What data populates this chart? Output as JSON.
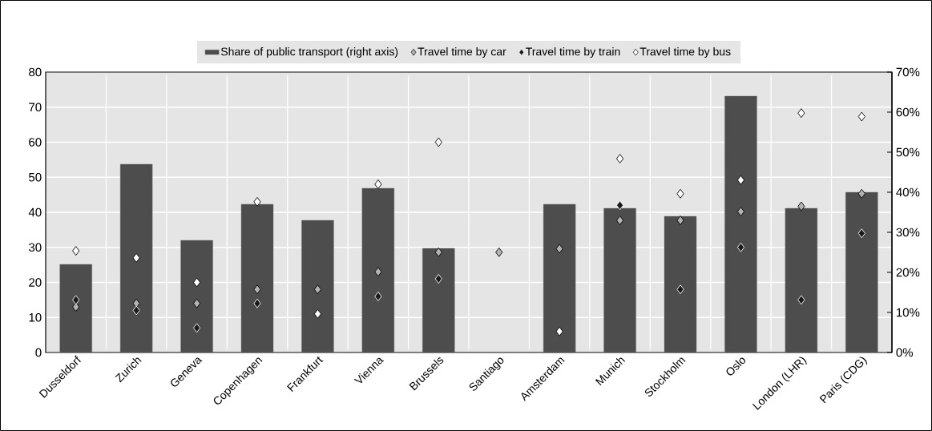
{
  "chart_data": {
    "type": "scatter",
    "categories": [
      "Dusseldorf",
      "Zurich",
      "Geneva",
      "Copenhagen",
      "Frankfurt",
      "Vienna",
      "Brussels",
      "Santiago",
      "Amsterdam",
      "Munich",
      "Stockholm",
      "Oslo",
      "London (LHR)",
      "Paris (CDG)"
    ],
    "series": [
      {
        "name": "Share of public transport (right axis)",
        "type": "bar",
        "axis": "y2",
        "color": "#4d4d4d",
        "values": [
          22,
          47,
          28,
          37,
          33,
          41,
          26,
          null,
          37,
          36,
          34,
          64,
          36,
          40
        ]
      },
      {
        "name": "Travel time by car",
        "color": "#b3b3b3",
        "values": [
          13,
          14,
          14,
          18,
          18,
          23,
          28.6,
          28.6,
          29.6,
          37.7,
          37.7,
          40.2,
          41.7,
          45.3
        ]
      },
      {
        "name": "Travel time by train",
        "color": "#1a1a1a",
        "values": [
          15,
          12,
          7,
          14,
          null,
          16,
          21,
          null,
          null,
          42,
          18,
          30,
          15,
          34
        ]
      },
      {
        "name": "Travel time by bus",
        "color": "#ffffff",
        "values": [
          29,
          27,
          20,
          43,
          11,
          48,
          60,
          null,
          6,
          55.3,
          45.3,
          49.2,
          68.3,
          67.3
        ]
      }
    ],
    "ylim": [
      0,
      80
    ],
    "yticks": [
      0,
      10,
      20,
      30,
      40,
      50,
      60,
      70,
      80
    ],
    "y2lim": [
      0,
      70
    ],
    "y2ticks": [
      {
        "value": 0,
        "label": "0%"
      },
      {
        "value": 10,
        "label": "10%"
      },
      {
        "value": 20,
        "label": "20%"
      },
      {
        "value": 30,
        "label": "30%"
      },
      {
        "value": 40,
        "label": "40%"
      },
      {
        "value": 50,
        "label": "50%"
      },
      {
        "value": 60,
        "label": "60%"
      },
      {
        "value": 70,
        "label": "70%"
      }
    ],
    "grid": true,
    "legend": "top",
    "marker": "diamond"
  }
}
